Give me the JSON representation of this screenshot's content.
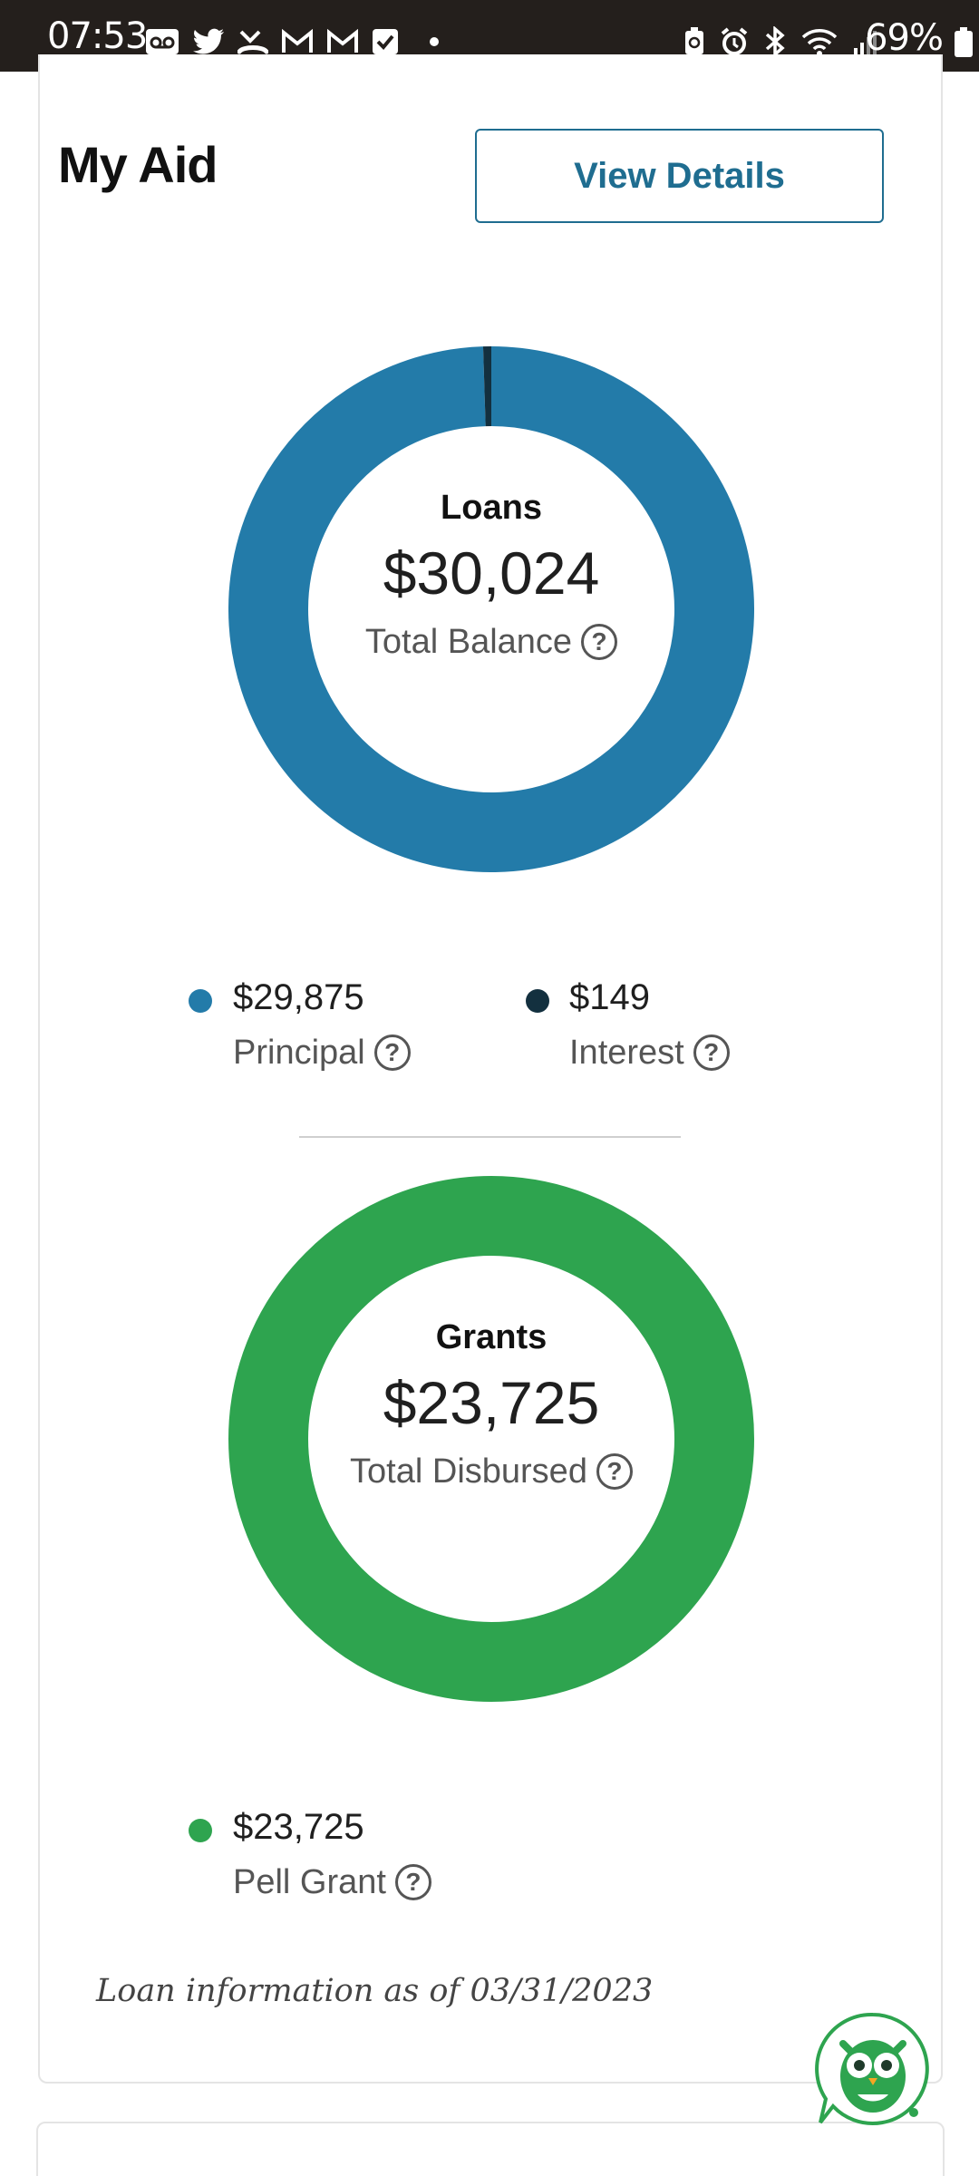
{
  "status_bar": {
    "time": "07:53",
    "battery": "69%",
    "left_icons": [
      "voicemail-icon",
      "twitter-icon",
      "missed-call-icon",
      "gmail-icon",
      "gmail-icon",
      "checkbox-icon",
      "dot-icon"
    ],
    "right_icons": [
      "recycle-icon",
      "alarm-icon",
      "bluetooth-icon",
      "wifi-icon",
      "signal-icon",
      "battery-icon"
    ]
  },
  "my_aid": {
    "title": "My Aid",
    "view_details_label": "View Details"
  },
  "loans": {
    "label": "Loans",
    "total": "$30,024",
    "total_label": "Total Balance",
    "legend": [
      {
        "amount": "$29,875",
        "name": "Principal",
        "color": "#237ba9"
      },
      {
        "amount": "$149",
        "name": "Interest",
        "color": "#13303f"
      }
    ]
  },
  "grants": {
    "label": "Grants",
    "total": "$23,725",
    "total_label": "Total Disbursed",
    "legend": [
      {
        "amount": "$23,725",
        "name": "Pell Grant",
        "color": "#2ea44f"
      }
    ]
  },
  "footnote": "Loan information as of 03/31/2023",
  "chart_data": [
    {
      "type": "pie",
      "title": "Loans",
      "categories": [
        "Principal",
        "Interest"
      ],
      "values": [
        29875,
        149
      ],
      "colors": [
        "#237ba9",
        "#13303f"
      ],
      "donut": true
    },
    {
      "type": "pie",
      "title": "Grants",
      "categories": [
        "Pell Grant"
      ],
      "values": [
        23725
      ],
      "colors": [
        "#2ea44f"
      ],
      "donut": true
    }
  ]
}
